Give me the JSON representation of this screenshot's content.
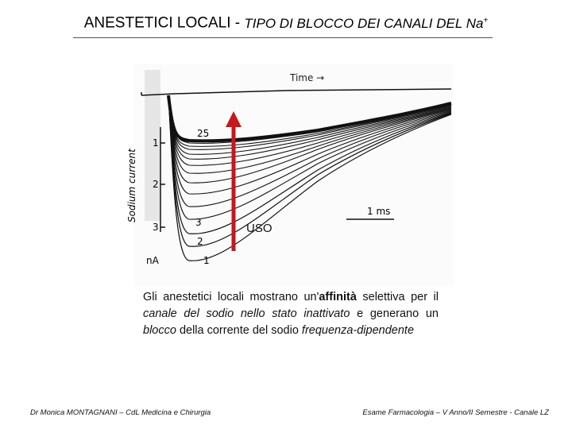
{
  "slide": {
    "title_main": "ANESTETICI LOCALI - ",
    "title_sub": "TIPO DI BLOCCO DEI CANALI DEL Na",
    "title_sup": "+"
  },
  "figure": {
    "time_label": "Time →",
    "y_axis_label": "Sodium current",
    "y_ticks": [
      "1",
      "2",
      "3"
    ],
    "unit_label": "nA",
    "trace_labels": [
      "25",
      "3",
      "2",
      "1"
    ],
    "scale_bar_label": "1 ms",
    "arrow_label": "USO",
    "arrow_color": "#c8161d"
  },
  "caption": {
    "p1": "Gli anestetici locali mostrano un'",
    "p2": "affinità",
    "p3": " selettiva per il ",
    "p4": "canale del sodio nello stato inattivato",
    "p5": " e generano un ",
    "p6": "blocco",
    "p7": " della corrente del sodio ",
    "p8": "frequenza-dipendente"
  },
  "footer": {
    "left": "Dr Monica MONTAGNANI – CdL Medicina e Chirurgia",
    "right": "Esame Farmacologia – V Anno/II Semestre - Canale LZ"
  }
}
